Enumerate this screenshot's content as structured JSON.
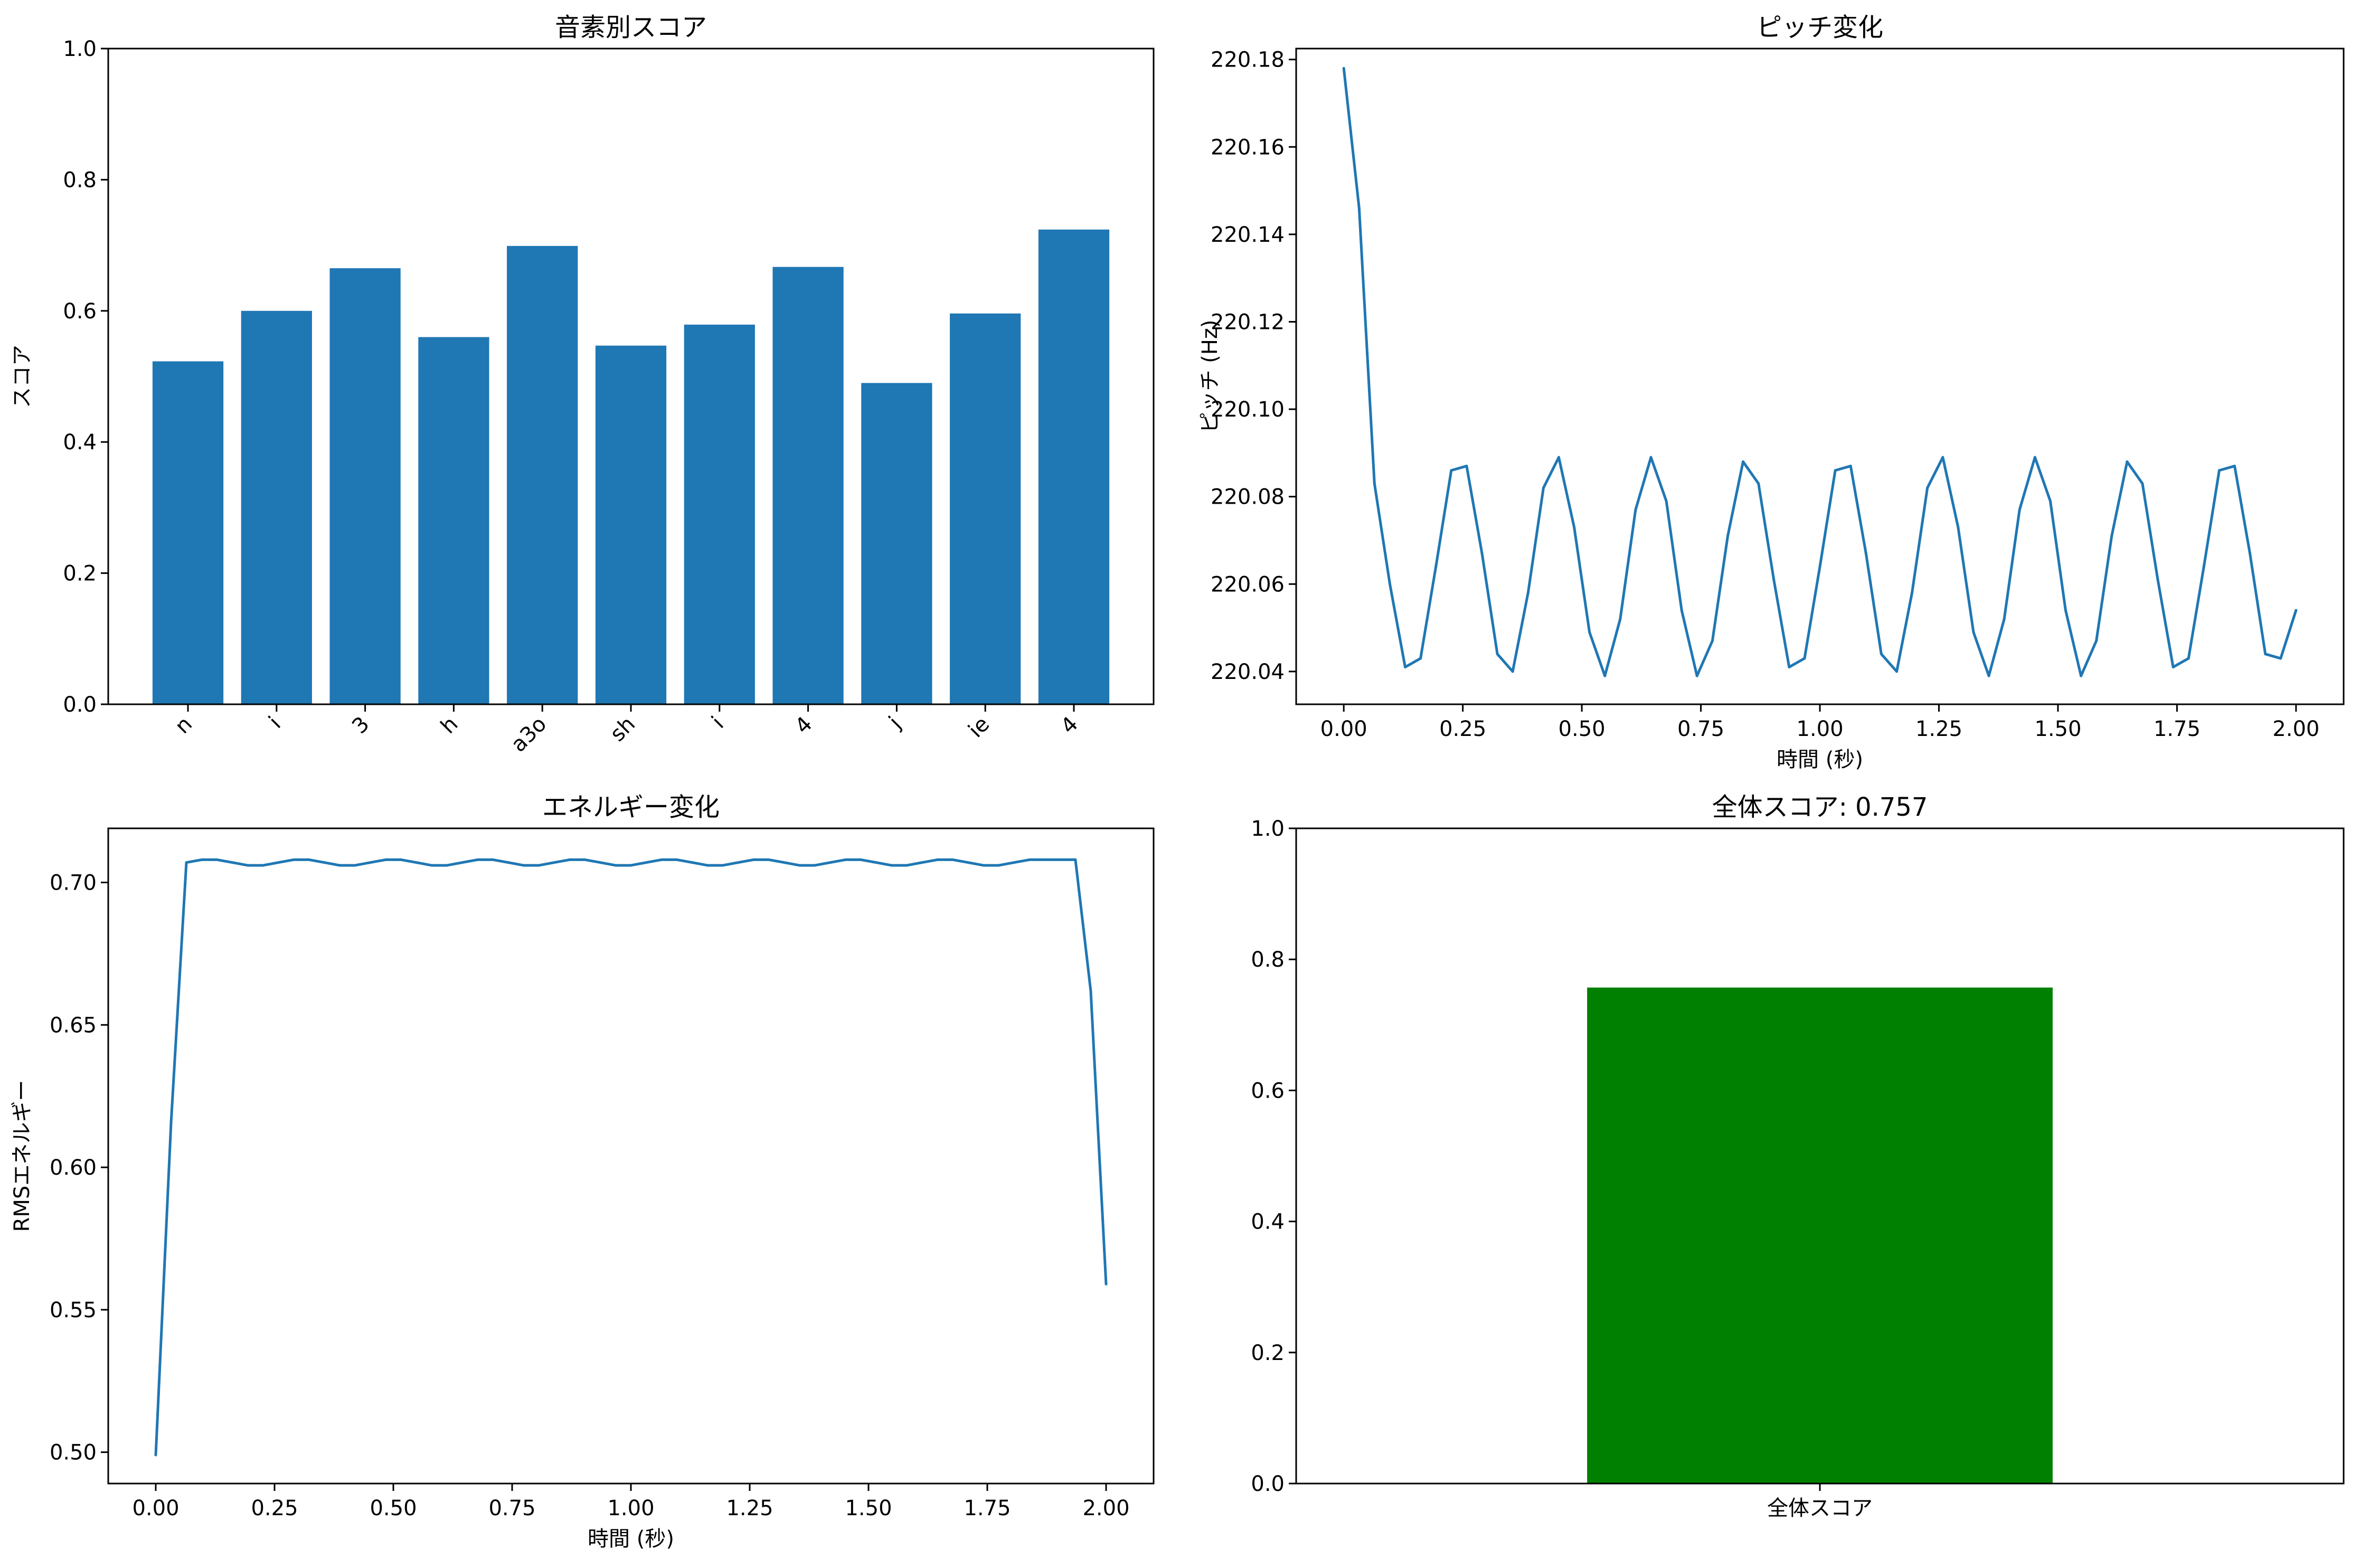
{
  "chart_data": [
    {
      "type": "bar",
      "title": "音素別スコア",
      "xlabel": "",
      "ylabel": "スコア",
      "categories": [
        "n",
        "i",
        "3",
        "h",
        "a3o",
        "sh",
        "i",
        "4",
        "j",
        "ie",
        "4"
      ],
      "values": [
        0.523,
        0.6,
        0.665,
        0.56,
        0.699,
        0.547,
        0.579,
        0.667,
        0.49,
        0.596,
        0.724
      ],
      "ylim": [
        0,
        1.0
      ],
      "yticks": [
        0.0,
        0.2,
        0.4,
        0.6,
        0.8,
        1.0
      ],
      "ytick_labels": [
        "0.0",
        "0.2",
        "0.4",
        "0.6",
        "0.8",
        "1.0"
      ],
      "color": "#1f77b4",
      "grid": false
    },
    {
      "type": "line",
      "title": "ピッチ変化",
      "xlabel": "時間 (秒)",
      "ylabel": "ピッチ (Hz)",
      "series": [
        {
          "x": [
            0.0,
            0.0323,
            0.0645,
            0.0968,
            0.129,
            0.1613,
            0.1935,
            0.2258,
            0.2581,
            0.2903,
            0.3226,
            0.3548,
            0.3871,
            0.4194,
            0.4516,
            0.4839,
            0.5161,
            0.5484,
            0.5806,
            0.6129,
            0.6452,
            0.6774,
            0.7097,
            0.7419,
            0.7742,
            0.8065,
            0.8387,
            0.871,
            0.9032,
            0.9355,
            0.9677,
            1.0,
            1.0323,
            1.0645,
            1.0968,
            1.129,
            1.1613,
            1.1935,
            1.2258,
            1.2581,
            1.2903,
            1.3226,
            1.3548,
            1.3871,
            1.4194,
            1.4516,
            1.4839,
            1.5161,
            1.5484,
            1.5806,
            1.6129,
            1.6452,
            1.6774,
            1.7097,
            1.7419,
            1.7742,
            1.8065,
            1.8387,
            1.871,
            1.9032,
            1.9355,
            1.9677,
            2.0
          ],
          "values": [
            220.178,
            220.146,
            220.083,
            220.06,
            220.041,
            220.043,
            220.064,
            220.086,
            220.087,
            220.067,
            220.044,
            220.04,
            220.058,
            220.082,
            220.089,
            220.073,
            220.049,
            220.039,
            220.052,
            220.077,
            220.089,
            220.079,
            220.054,
            220.039,
            220.047,
            220.071,
            220.088,
            220.083,
            220.061,
            220.041,
            220.043,
            220.064,
            220.086,
            220.087,
            220.067,
            220.044,
            220.04,
            220.058,
            220.082,
            220.089,
            220.073,
            220.049,
            220.039,
            220.052,
            220.077,
            220.089,
            220.079,
            220.054,
            220.039,
            220.047,
            220.071,
            220.088,
            220.083,
            220.061,
            220.041,
            220.043,
            220.064,
            220.086,
            220.087,
            220.067,
            220.044,
            220.043,
            220.054
          ]
        }
      ],
      "xlim": [
        -0.1,
        2.1
      ],
      "ylim": [
        220.0325,
        220.1825
      ],
      "xticks": [
        0.0,
        0.25,
        0.5,
        0.75,
        1.0,
        1.25,
        1.5,
        1.75,
        2.0
      ],
      "xtick_labels": [
        "0.00",
        "0.25",
        "0.50",
        "0.75",
        "1.00",
        "1.25",
        "1.50",
        "1.75",
        "2.00"
      ],
      "yticks": [
        220.04,
        220.06,
        220.08,
        220.1,
        220.12,
        220.14,
        220.16,
        220.18
      ],
      "ytick_labels": [
        "220.04",
        "220.06",
        "220.08",
        "220.10",
        "220.12",
        "220.14",
        "220.16",
        "220.18"
      ],
      "color": "#1f77b4",
      "grid": false
    },
    {
      "type": "line",
      "title": "エネルギー変化",
      "xlabel": "時間 (秒)",
      "ylabel": "RMSエネルギー",
      "series": [
        {
          "x": [
            0.0,
            0.0323,
            0.0645,
            0.0968,
            0.129,
            0.1613,
            0.1935,
            0.2258,
            0.2581,
            0.2903,
            0.3226,
            0.3548,
            0.3871,
            0.4194,
            0.4516,
            0.4839,
            0.5161,
            0.5484,
            0.5806,
            0.6129,
            0.6452,
            0.6774,
            0.7097,
            0.7419,
            0.7742,
            0.8065,
            0.8387,
            0.871,
            0.9032,
            0.9355,
            0.9677,
            1.0,
            1.0323,
            1.0645,
            1.0968,
            1.129,
            1.1613,
            1.1935,
            1.2258,
            1.2581,
            1.2903,
            1.3226,
            1.3548,
            1.3871,
            1.4194,
            1.4516,
            1.4839,
            1.5161,
            1.5484,
            1.5806,
            1.6129,
            1.6452,
            1.6774,
            1.7097,
            1.7419,
            1.7742,
            1.8065,
            1.8387,
            1.871,
            1.9032,
            1.9355,
            1.9677,
            2.0
          ],
          "values": [
            0.499,
            0.616,
            0.707,
            0.708,
            0.708,
            0.707,
            0.706,
            0.706,
            0.707,
            0.708,
            0.708,
            0.707,
            0.706,
            0.706,
            0.707,
            0.708,
            0.708,
            0.707,
            0.706,
            0.706,
            0.707,
            0.708,
            0.708,
            0.707,
            0.706,
            0.706,
            0.707,
            0.708,
            0.708,
            0.707,
            0.706,
            0.706,
            0.707,
            0.708,
            0.708,
            0.707,
            0.706,
            0.706,
            0.707,
            0.708,
            0.708,
            0.707,
            0.706,
            0.706,
            0.707,
            0.708,
            0.708,
            0.707,
            0.706,
            0.706,
            0.707,
            0.708,
            0.708,
            0.707,
            0.706,
            0.706,
            0.707,
            0.708,
            0.708,
            0.708,
            0.708,
            0.662,
            0.559
          ]
        }
      ],
      "xlim": [
        -0.1,
        2.1
      ],
      "ylim": [
        0.489,
        0.719
      ],
      "xticks": [
        0.0,
        0.25,
        0.5,
        0.75,
        1.0,
        1.25,
        1.5,
        1.75,
        2.0
      ],
      "xtick_labels": [
        "0.00",
        "0.25",
        "0.50",
        "0.75",
        "1.00",
        "1.25",
        "1.50",
        "1.75",
        "2.00"
      ],
      "yticks": [
        0.5,
        0.55,
        0.6,
        0.65,
        0.7
      ],
      "ytick_labels": [
        "0.50",
        "0.55",
        "0.60",
        "0.65",
        "0.70"
      ],
      "color": "#1f77b4",
      "grid": false
    },
    {
      "type": "bar",
      "title": "全体スコア: 0.757",
      "xlabel": "",
      "ylabel": "",
      "categories": [
        "全体スコア"
      ],
      "values": [
        0.757
      ],
      "ylim": [
        0,
        1.0
      ],
      "yticks": [
        0.0,
        0.2,
        0.4,
        0.6,
        0.8,
        1.0
      ],
      "ytick_labels": [
        "0.0",
        "0.2",
        "0.4",
        "0.6",
        "0.8",
        "1.0"
      ],
      "color": "#008000",
      "grid": false
    }
  ]
}
